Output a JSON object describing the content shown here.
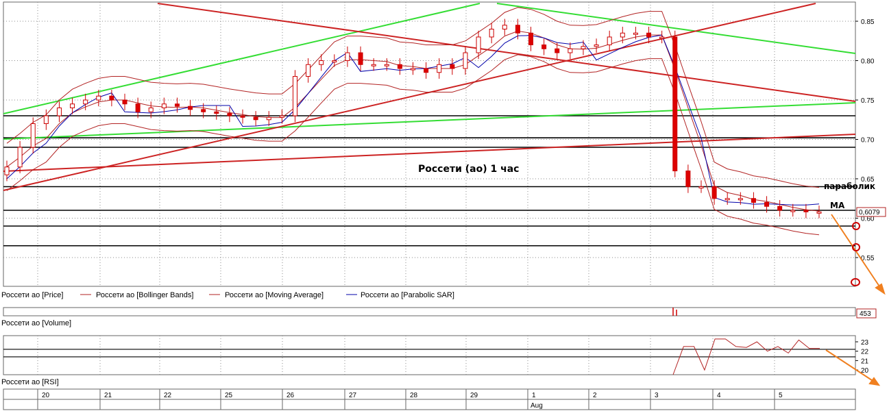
{
  "chart_data": {
    "type": "candlestick",
    "title": "Россети (ао)   1 час",
    "price_axis": {
      "ylim": [
        0.515,
        0.875
      ],
      "ticks": [
        0.55,
        0.6,
        0.65,
        0.7,
        0.75,
        0.8,
        0.85
      ]
    },
    "last_price_label": "0,6079",
    "volume_label": "453",
    "rsi_axis": {
      "ticks": [
        20,
        21,
        22,
        23
      ]
    },
    "x_axis": {
      "days": [
        "20",
        "21",
        "22",
        "25",
        "26",
        "27",
        "28",
        "29",
        "1",
        "2",
        "3",
        "4",
        "5"
      ],
      "month_label": "Aug"
    },
    "legend": {
      "price_panel": [
        {
          "label": "Россети ао [Price]",
          "color": "#000000"
        },
        {
          "label": "Россети ао [Bollinger Bands]",
          "color": "#b22222"
        },
        {
          "label": "Россети ао [Moving Average]",
          "color": "#b22222"
        },
        {
          "label": "Россети ао [Parabolic SAR]",
          "color": "#0000aa"
        }
      ],
      "volume_panel": "Россети ао [Volume]",
      "rsi_panel": "Россети ао [RSI]"
    },
    "annotations": {
      "parabolic": "параболик",
      "ma": "MA"
    },
    "horizontal_levels": [
      0.565,
      0.59,
      0.61,
      0.64,
      0.69,
      0.702,
      0.73
    ],
    "close_path": [
      0.665,
      0.69,
      0.72,
      0.73,
      0.74,
      0.745,
      0.75,
      0.755,
      0.75,
      0.745,
      0.735,
      0.74,
      0.745,
      0.742,
      0.738,
      0.735,
      0.733,
      0.73,
      0.728,
      0.725,
      0.728,
      0.73,
      0.78,
      0.795,
      0.8,
      0.8,
      0.81,
      0.795,
      0.795,
      0.795,
      0.79,
      0.79,
      0.785,
      0.795,
      0.79,
      0.81,
      0.83,
      0.84,
      0.845,
      0.835,
      0.82,
      0.815,
      0.81,
      0.815,
      0.818,
      0.82,
      0.83,
      0.835,
      0.835,
      0.83,
      0.83,
      0.66,
      0.64,
      0.64,
      0.625,
      0.625,
      0.625,
      0.62,
      0.615,
      0.61,
      0.61,
      0.608,
      0.608
    ],
    "rsi_path": [
      19.5,
      22.5,
      22.5,
      20,
      23.3,
      23.3,
      22.5,
      22.4,
      23,
      22,
      22.5,
      21.8,
      23.2,
      22.3,
      22.3
    ]
  }
}
